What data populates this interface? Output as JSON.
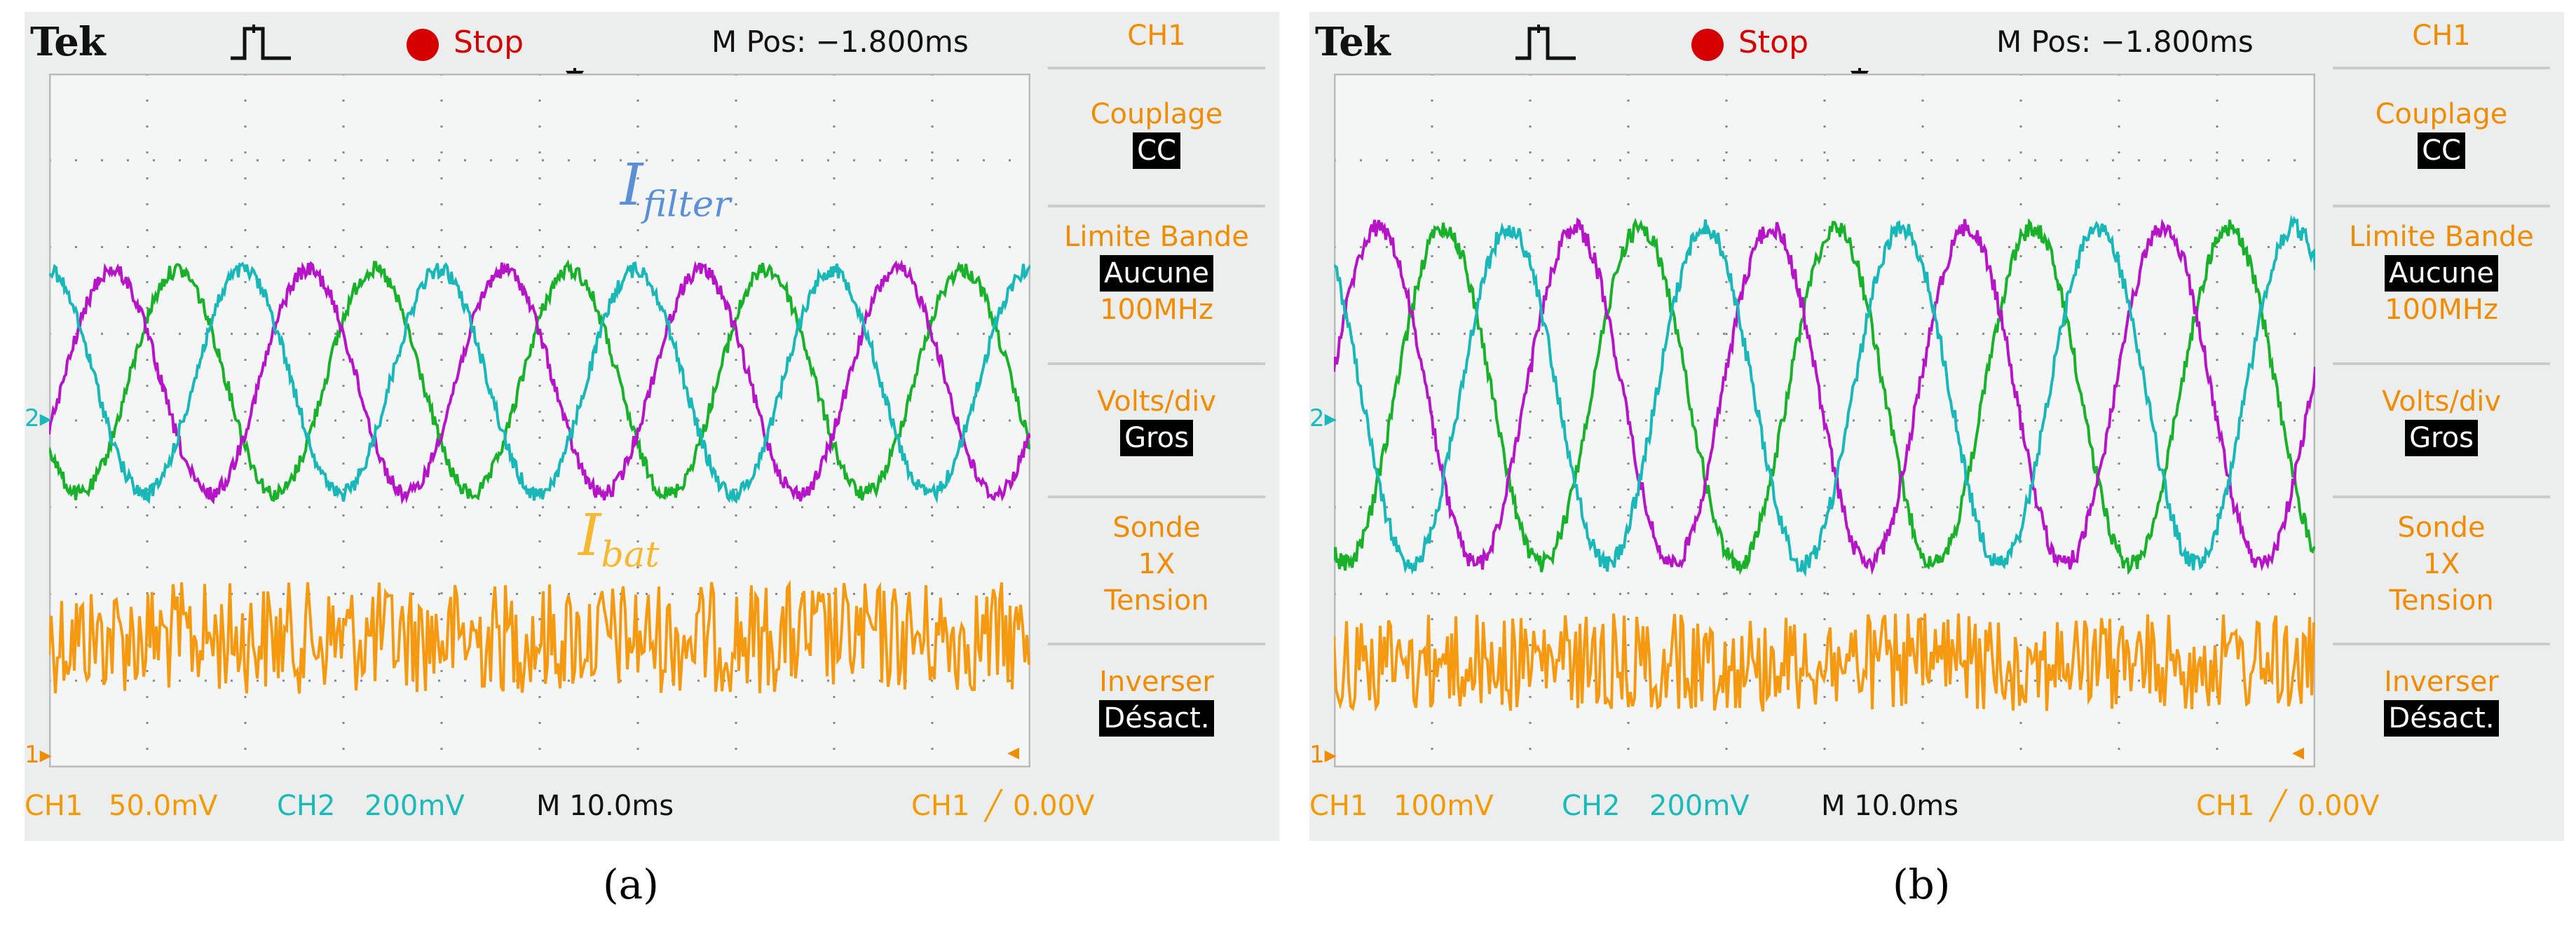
{
  "scopes": [
    {
      "id": "a",
      "brand": "Tek",
      "run_state": "Stop",
      "m_pos": "M Pos: −1.800ms",
      "menu": {
        "channel": "CH1",
        "coupling_label": "Couplage",
        "coupling_value": "CC",
        "bw_label": "Limite Bande",
        "bw_value": "Aucune",
        "bw_freq": "100MHz",
        "volts_label": "Volts/div",
        "volts_value": "Gros",
        "probe_label": "Sonde",
        "probe_value": "1X",
        "probe_mode": "Tension",
        "invert_label": "Inverser",
        "invert_value": "Désact."
      },
      "bottom": {
        "ch1_label": "CH1",
        "ch1_scale": "50.0mV",
        "ch2_label": "CH2",
        "ch2_scale": "200mV",
        "timebase": "M 10.0ms",
        "trigger_channel": "CH1",
        "trigger_level": "0.00V"
      },
      "annotations": {
        "filter_main": "I",
        "filter_sub": "filter",
        "bat_main": "I",
        "bat_sub": "bat"
      },
      "markers": {
        "ch1": "1",
        "ch2": "2"
      },
      "caption": "(a)"
    },
    {
      "id": "b",
      "brand": "Tek",
      "run_state": "Stop",
      "m_pos": "M Pos: −1.800ms",
      "menu": {
        "channel": "CH1",
        "coupling_label": "Couplage",
        "coupling_value": "CC",
        "bw_label": "Limite Bande",
        "bw_value": "Aucune",
        "bw_freq": "100MHz",
        "volts_label": "Volts/div",
        "volts_value": "Gros",
        "probe_label": "Sonde",
        "probe_value": "1X",
        "probe_mode": "Tension",
        "invert_label": "Inverser",
        "invert_value": "Désact."
      },
      "bottom": {
        "ch1_label": "CH1",
        "ch1_scale": "100mV",
        "ch2_label": "CH2",
        "ch2_scale": "200mV",
        "timebase": "M 10.0ms",
        "trigger_channel": "CH1",
        "trigger_level": "0.00V"
      },
      "markers": {
        "ch1": "1",
        "ch2": "2"
      },
      "caption": "(b)"
    }
  ],
  "colors": {
    "phase_a": "#19b02a",
    "phase_b": "#b515c6",
    "phase_c": "#19b7b7",
    "battery": "#f59a10",
    "menu_text": "#f08c00",
    "stop": "#d40000",
    "annotation_filter": "#5b8fd6",
    "annotation_bat": "#f5b830"
  },
  "icons": {
    "trigger": "pulse-icon",
    "run_state": "stop-dot-icon"
  }
}
